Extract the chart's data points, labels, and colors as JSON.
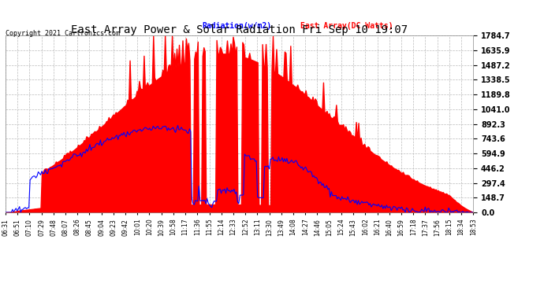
{
  "title": "East Array Power & Solar Radiation Fri Sep 10 19:07",
  "copyright": "Copyright 2021 Cartronics.com",
  "legend_radiation": "Radiation(w/m2)",
  "legend_array": "East Array(DC Watts)",
  "y_max": 1784.7,
  "y_ticks": [
    0.0,
    148.7,
    297.4,
    446.2,
    594.9,
    743.6,
    892.3,
    1041.0,
    1189.8,
    1338.5,
    1487.2,
    1635.9,
    1784.7
  ],
  "bg_color": "#ffffff",
  "plot_bg_color": "#ffffff",
  "grid_color": "#aaaaaa",
  "red_color": "#FF0000",
  "blue_color": "#0000FF",
  "x_labels": [
    "06:31",
    "06:51",
    "07:10",
    "07:29",
    "07:48",
    "08:07",
    "08:26",
    "08:45",
    "09:04",
    "09:23",
    "09:42",
    "10:01",
    "10:20",
    "10:39",
    "10:58",
    "11:17",
    "11:36",
    "11:55",
    "12:14",
    "12:33",
    "12:52",
    "13:11",
    "13:30",
    "13:49",
    "14:08",
    "14:27",
    "14:46",
    "15:05",
    "15:24",
    "15:43",
    "16:02",
    "16:21",
    "16:40",
    "16:59",
    "17:18",
    "17:37",
    "17:56",
    "18:15",
    "18:34",
    "18:53"
  ]
}
